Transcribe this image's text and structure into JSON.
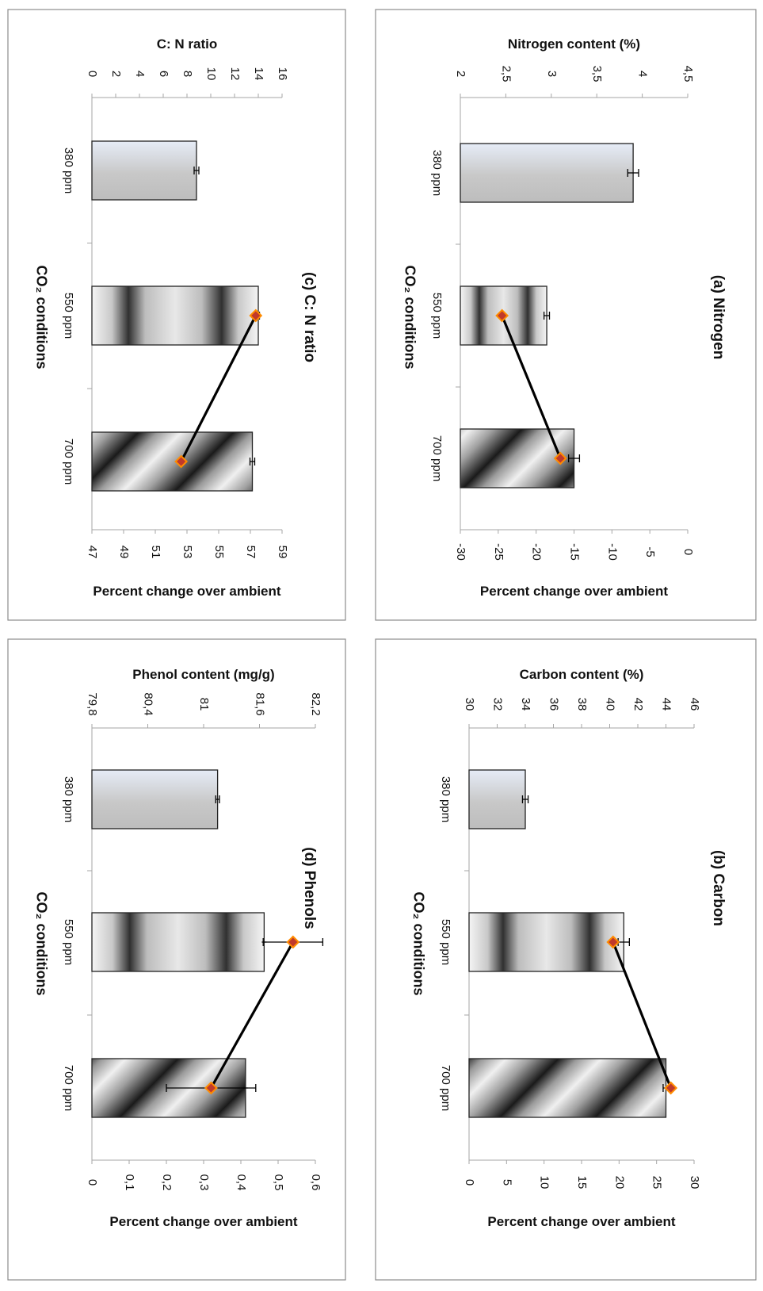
{
  "chart_data": [
    {
      "type": "bar",
      "title": "(a) Nitrogen",
      "xlabel": "CO₂ conditions",
      "categories": [
        "380 ppm",
        "550 ppm",
        "700 ppm"
      ],
      "primary_axis": {
        "label": "Nitrogen content (%)",
        "range": [
          2,
          4.5
        ],
        "ticks": [
          "2",
          "2,5",
          "3",
          "3,5",
          "4",
          "4,5"
        ],
        "values": [
          3.9,
          2.95,
          3.25
        ],
        "errors": [
          0.06,
          0.03,
          0.06
        ]
      },
      "secondary_axis": {
        "label": "Percent change over ambient",
        "range": [
          -30,
          0
        ],
        "ticks": [
          "-30",
          "-25",
          "-20",
          "-15",
          "-10",
          "-5",
          "0"
        ],
        "series_values": [
          null,
          -24.5,
          -16.8
        ]
      }
    },
    {
      "type": "bar",
      "title": "(b) Carbon",
      "xlabel": "CO₂ conditions",
      "categories": [
        "380 ppm",
        "550 ppm",
        "700 ppm"
      ],
      "primary_axis": {
        "label": "Carbon content (%)",
        "range": [
          30,
          46
        ],
        "ticks": [
          "30",
          "32",
          "34",
          "36",
          "38",
          "40",
          "42",
          "44",
          "46"
        ],
        "values": [
          34,
          41,
          44
        ],
        "errors": [
          0.2,
          0.4,
          0.2
        ]
      },
      "secondary_axis": {
        "label": "Percent change over ambient",
        "range": [
          0,
          30
        ],
        "ticks": [
          "0",
          "5",
          "10",
          "15",
          "20",
          "25",
          "30"
        ],
        "series_values": [
          null,
          19.2,
          26.9
        ]
      }
    },
    {
      "type": "bar",
      "title": "(c) C: N ratio",
      "xlabel": "CO₂ conditions",
      "categories": [
        "380 ppm",
        "550 ppm",
        "700 ppm"
      ],
      "primary_axis": {
        "label": "C: N ratio",
        "range": [
          0,
          16
        ],
        "ticks": [
          "0",
          "2",
          "4",
          "6",
          "8",
          "10",
          "12",
          "14",
          "16"
        ],
        "values": [
          8.8,
          14,
          13.5
        ],
        "errors": [
          0.2,
          0.1,
          0.2
        ]
      },
      "secondary_axis": {
        "label": "Percent change over ambient",
        "range": [
          47,
          60
        ],
        "ticks": [
          "47",
          "49",
          "51",
          "53",
          "55",
          "57",
          "59"
        ],
        "series_values": [
          null,
          58.2,
          53.1
        ]
      }
    },
    {
      "type": "bar",
      "title": "(d) Phenols",
      "xlabel": "CO₂ conditions",
      "categories": [
        "380 ppm",
        "550 ppm",
        "700 ppm"
      ],
      "primary_axis": {
        "label": "Phenol content (mg/g)",
        "range": [
          79.8,
          82.2
        ],
        "ticks": [
          "79,8",
          "80,4",
          "81",
          "81,6",
          "82,2"
        ],
        "values": [
          81.15,
          81.65,
          81.45
        ],
        "errors": [
          0.02,
          0,
          0
        ]
      },
      "secondary_axis": {
        "label": "Percent change over ambient",
        "range": [
          0,
          0.6
        ],
        "ticks": [
          "0",
          "0,1",
          "0,2",
          "0,3",
          "0,4",
          "0,5",
          "0,6"
        ],
        "series_values": [
          null,
          0.54,
          0.32
        ],
        "errors": [
          null,
          0.08,
          0.12
        ]
      }
    }
  ],
  "colors": {
    "frame": "#8c8c8c",
    "axis": "#a6a6a6",
    "bar_outline": "#222222",
    "marker_fill": "#c0392b",
    "marker_edge": "#ff8c00",
    "line": "#000000",
    "text": "#111111"
  }
}
